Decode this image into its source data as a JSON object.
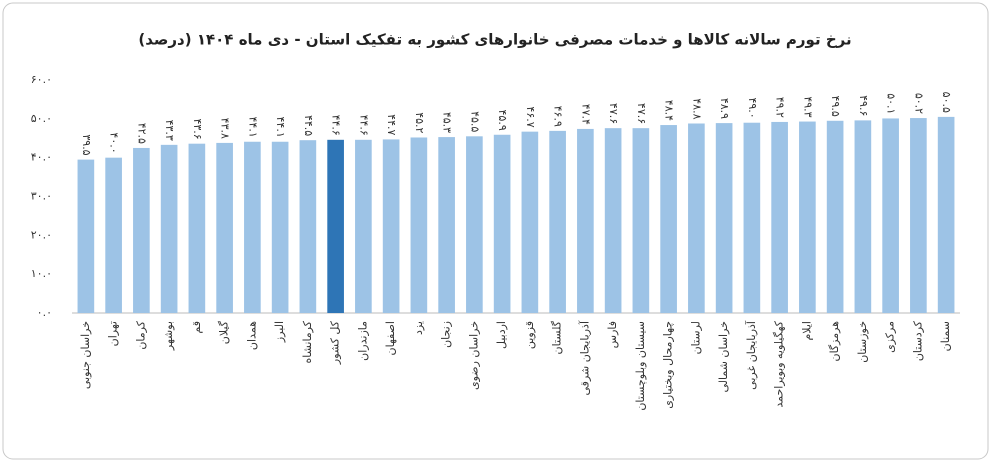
{
  "chart_data": {
    "type": "bar",
    "title": "نرخ تورم سالانه کالاها و خدمات مصرفی خانوارهای کشور به تفکیک استان - دی ماه ۱۴۰۴ (درصد)",
    "categories": [
      "خراسان جنوبی",
      "تهران",
      "کرمان",
      "بوشهر",
      "قم",
      "گیلان",
      "همدان",
      "البرز",
      "کرمانشاه",
      "کل کشور",
      "مازندران",
      "اصفهان",
      "یزد",
      "زنجان",
      "خراسان رضوی",
      "اردبیل",
      "قزوین",
      "گلستان",
      "آذربایجان شرقی",
      "فارس",
      "سیستان وبلوچستان",
      "چهارمحال وبختیاری",
      "لرستان",
      "خراسان شمالی",
      "آذربایجان غربی",
      "کهگیلویه وبویراحمد",
      "ایلام",
      "هرمزگان",
      "خوزستان",
      "مرکزی",
      "کردستان",
      "سمنان"
    ],
    "values": [
      39.5,
      40.0,
      42.5,
      43.3,
      43.6,
      43.8,
      44.1,
      44.1,
      44.5,
      44.6,
      44.6,
      44.7,
      45.2,
      45.3,
      45.5,
      45.9,
      46.7,
      46.9,
      47.4,
      47.6,
      47.6,
      48.4,
      48.8,
      48.9,
      49.0,
      49.2,
      49.3,
      49.5,
      49.6,
      50.1,
      50.2,
      50.5
    ],
    "value_labels": [
      "۳۹.۵",
      "۴۰.۰",
      "۴۲.۵",
      "۴۳.۳",
      "۴۳.۶",
      "۴۳.۸",
      "۴۴.۱",
      "۴۴.۱",
      "۴۴.۵",
      "۴۴.۶",
      "۴۴.۶",
      "۴۴.۷",
      "۴۵.۲",
      "۴۵.۳",
      "۴۵.۵",
      "۴۵.۹",
      "۴۶.۷",
      "۴۶.۹",
      "۴۷.۴",
      "۴۷.۶",
      "۴۷.۶",
      "۴۸.۴",
      "۴۸.۸",
      "۴۸.۹",
      "۴۹.۰",
      "۴۹.۲",
      "۴۹.۳",
      "۴۹.۵",
      "۴۹.۶",
      "۵۰.۱",
      "۵۰.۲",
      "۵۰.۵"
    ],
    "colors": [
      "#9dc3e6",
      "#9dc3e6",
      "#9dc3e6",
      "#9dc3e6",
      "#9dc3e6",
      "#9dc3e6",
      "#9dc3e6",
      "#9dc3e6",
      "#9dc3e6",
      "#2e75b6",
      "#9dc3e6",
      "#9dc3e6",
      "#9dc3e6",
      "#9dc3e6",
      "#9dc3e6",
      "#9dc3e6",
      "#9dc3e6",
      "#9dc3e6",
      "#9dc3e6",
      "#9dc3e6",
      "#9dc3e6",
      "#9dc3e6",
      "#9dc3e6",
      "#9dc3e6",
      "#9dc3e6",
      "#9dc3e6",
      "#9dc3e6",
      "#9dc3e6",
      "#9dc3e6",
      "#9dc3e6",
      "#9dc3e6",
      "#9dc3e6"
    ],
    "ylim": [
      0,
      60
    ],
    "yticks": [
      {
        "value": 0,
        "label": "۰.۰"
      },
      {
        "value": 10,
        "label": "۱۰.۰"
      },
      {
        "value": 20,
        "label": "۲۰.۰"
      },
      {
        "value": 30,
        "label": "۳۰.۰"
      },
      {
        "value": 40,
        "label": "۴۰.۰"
      },
      {
        "value": 50,
        "label": "۵۰.۰"
      },
      {
        "value": 60,
        "label": "۶۰.۰"
      }
    ],
    "grid": false
  }
}
